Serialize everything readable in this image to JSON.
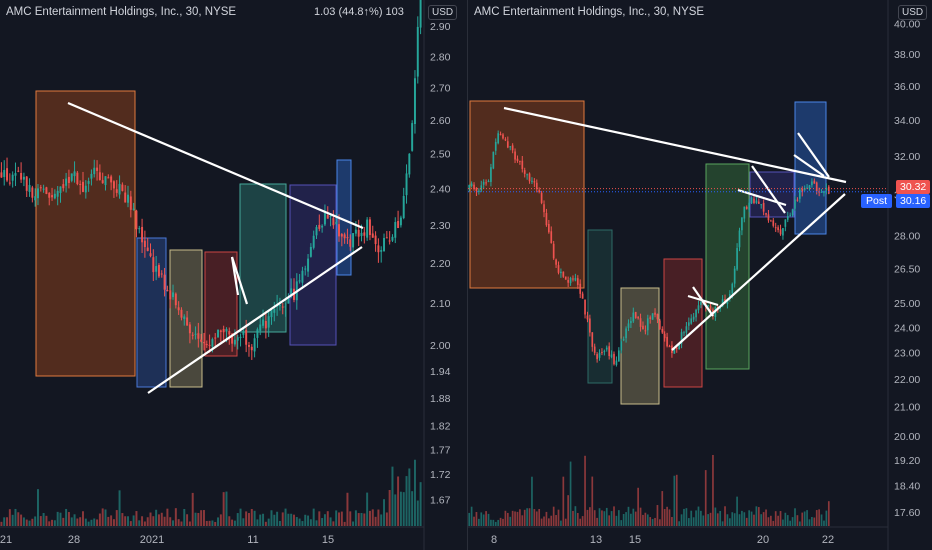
{
  "colors": {
    "background": "#131722",
    "up": "#26a69a",
    "down": "#ef5350",
    "axis_text": "#b2b5be",
    "trendline": "#ffffff",
    "last_price_bg": "#ef5350",
    "post_bg": "#2962ff"
  },
  "left_chart": {
    "title": "AMC Entertainment Holdings, Inc., 30, NYSE",
    "ohlc_readout": "1.03 (44.8↑%) 103",
    "currency": "USD",
    "y_ticks": [
      "2.90",
      "2.80",
      "2.70",
      "2.60",
      "2.50",
      "2.40",
      "2.30",
      "2.20",
      "2.10",
      "2.00",
      "1.94",
      "1.88",
      "1.82",
      "1.77",
      "1.72",
      "1.67"
    ],
    "x_ticks": [
      "21",
      "28",
      "2021",
      "11",
      "15"
    ]
  },
  "right_chart": {
    "title": "AMC Entertainment Holdings, Inc., 30, NYSE",
    "currency": "USD",
    "last_price": "30.32",
    "post_label": "Post",
    "post_price": "30.16",
    "y_ticks": [
      "40.00",
      "38.00",
      "36.00",
      "34.00",
      "32.00",
      "30.00",
      "28.00",
      "26.50",
      "25.00",
      "24.00",
      "23.00",
      "22.00",
      "21.00",
      "20.00",
      "19.20",
      "18.40",
      "17.60"
    ],
    "x_ticks": [
      "8",
      "13",
      "15",
      "20",
      "22"
    ]
  },
  "chart_data": [
    {
      "type": "candlestick",
      "title": "AMC Entertainment Holdings, Inc., 30, NYSE",
      "y_scale": "log",
      "ylim": [
        1.62,
        2.95
      ],
      "x_ticks": [
        "21",
        "28",
        "2021",
        "11",
        "15"
      ],
      "y_ticks": [
        2.9,
        2.8,
        2.7,
        2.6,
        2.5,
        2.4,
        2.3,
        2.2,
        2.1,
        2.0,
        1.94,
        1.88,
        1.82,
        1.77,
        1.72,
        1.67
      ],
      "close_path": [
        2.45,
        2.42,
        2.44,
        2.37,
        2.4,
        2.36,
        2.42,
        2.44,
        2.4,
        2.45,
        2.42,
        2.4,
        2.38,
        2.3,
        2.22,
        2.17,
        2.13,
        2.08,
        2.04,
        1.99,
        2.02,
        2.05,
        2.01,
        2.03,
        2.0,
        2.05,
        2.07,
        2.1,
        2.13,
        2.2,
        2.29,
        2.33,
        2.3,
        2.25,
        2.28,
        2.3,
        2.24,
        2.26,
        2.31,
        2.5,
        3.05
      ]
    },
    {
      "type": "candlestick",
      "title": "AMC Entertainment Holdings, Inc., 30, NYSE",
      "y_scale": "log",
      "ylim": [
        17.2,
        40.8
      ],
      "x_ticks": [
        "8",
        "13",
        "15",
        "20",
        "22"
      ],
      "y_ticks": [
        40,
        38,
        36,
        34,
        32,
        30,
        28,
        26.5,
        25,
        24,
        23,
        22,
        21,
        20,
        19.2,
        18.4,
        17.6
      ],
      "last_price": 30.32,
      "post_price": 30.16,
      "close_path": [
        30.5,
        30.3,
        30.8,
        33.5,
        32.6,
        31.8,
        31.0,
        30.4,
        28.5,
        26.5,
        26.0,
        26.2,
        24.5,
        22.8,
        23.2,
        22.6,
        23.8,
        24.6,
        23.9,
        24.8,
        23.5,
        23.0,
        23.8,
        24.5,
        25.2,
        24.6,
        25.0,
        25.5,
        29.0,
        29.8,
        29.5,
        28.6,
        28.2,
        29.0,
        30.2,
        30.6,
        30.3,
        30.2
      ]
    }
  ]
}
